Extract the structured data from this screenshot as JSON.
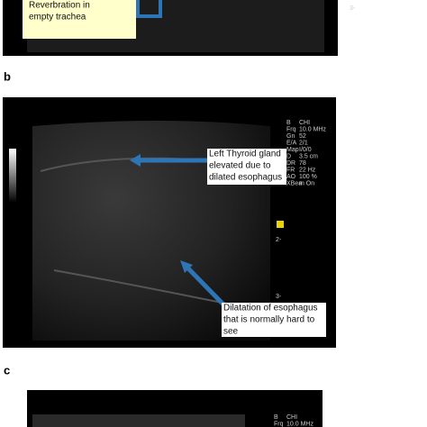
{
  "panel_a": {
    "annotation": [
      "Reverbration in",
      "empty trachea"
    ],
    "depth_marks": [
      "3-"
    ]
  },
  "panel_b": {
    "label": "b",
    "settings": [
      [
        "B",
        "CHI"
      ],
      [
        "Frq",
        "10.0 MHz"
      ],
      [
        "Gn",
        "52"
      ],
      [
        "E/A",
        "2/1"
      ],
      [
        "Map",
        "I/0/0"
      ],
      [
        "D",
        "3.5 cm"
      ],
      [
        "DR",
        "78"
      ],
      [
        "FR",
        "22 Hz"
      ],
      [
        "AO",
        "100 %"
      ],
      [
        "XBea",
        "m On"
      ]
    ],
    "depth_marks": [
      "2-",
      "3-"
    ],
    "annotations": [
      {
        "lines": [
          "Left Thyroid gland",
          "elevated due to",
          "dilated esophagus"
        ]
      },
      {
        "lines": [
          "Dilatation of esophagus",
          "that is normally hard to",
          "see"
        ]
      }
    ]
  },
  "panel_c": {
    "label": "c",
    "settings": [
      [
        "B",
        "CHI"
      ],
      [
        "Frq",
        "10.0 MHz"
      ]
    ]
  }
}
